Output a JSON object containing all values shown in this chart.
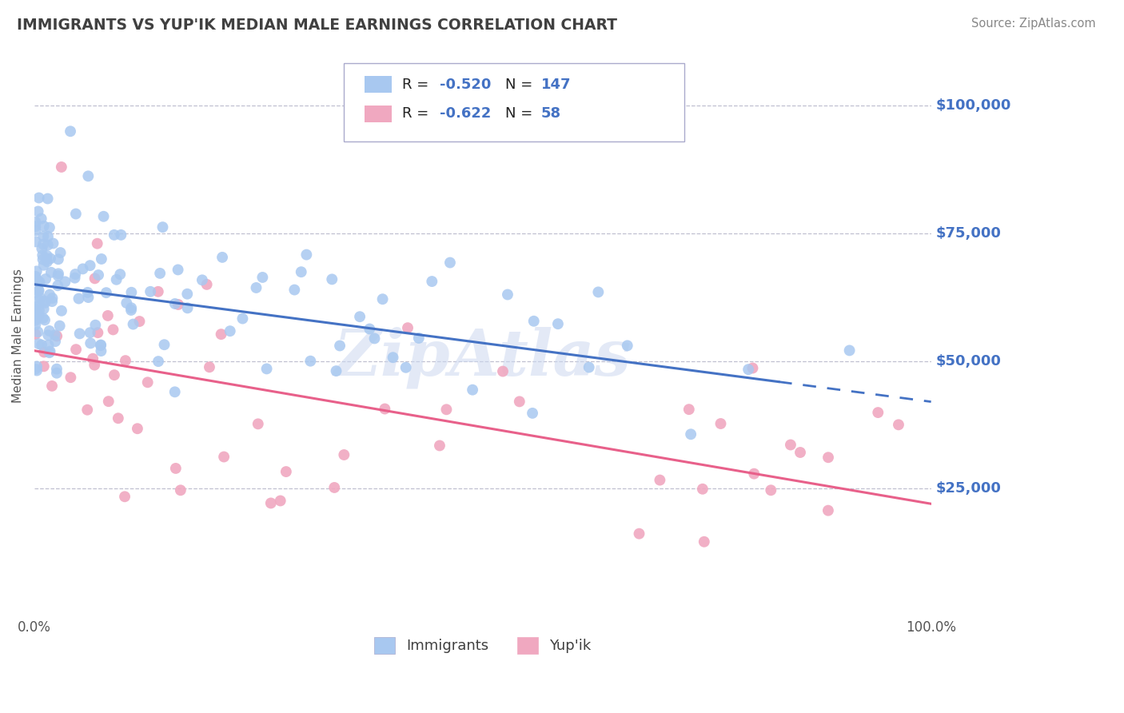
{
  "title": "IMMIGRANTS VS YUP'IK MEDIAN MALE EARNINGS CORRELATION CHART",
  "source_text": "Source: ZipAtlas.com",
  "ylabel": "Median Male Earnings",
  "xlim": [
    0,
    1.0
  ],
  "ylim": [
    0,
    110000
  ],
  "xtick_labels": [
    "0.0%",
    "100.0%"
  ],
  "ytick_values": [
    25000,
    50000,
    75000,
    100000
  ],
  "ytick_labels": [
    "$25,000",
    "$50,000",
    "$75,000",
    "$100,000"
  ],
  "series1_color": "#a8c8f0",
  "series2_color": "#f0a8c0",
  "line1_color": "#4472c4",
  "line2_color": "#e8608a",
  "legend_bottom_label1": "Immigrants",
  "legend_bottom_label2": "Yup'ik",
  "R1": -0.52,
  "N1": 147,
  "R2": -0.622,
  "N2": 58,
  "watermark": "ZipAtlas",
  "background_color": "#ffffff",
  "grid_color": "#c0c0d0",
  "title_color": "#404040",
  "source_color": "#888888",
  "ytick_color": "#4472c4",
  "line1_solid_end": 0.83,
  "line1_y_at_0": 65000,
  "line1_y_at_1": 42000,
  "line2_y_at_0": 52000,
  "line2_y_at_1": 22000
}
